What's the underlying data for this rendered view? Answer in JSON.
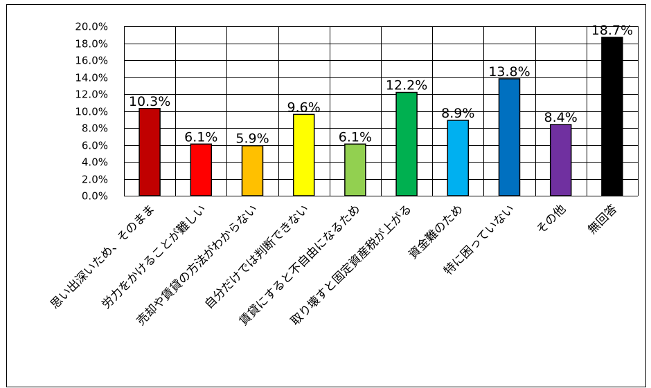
{
  "chart_data": {
    "type": "bar",
    "title": "",
    "xlabel": "",
    "ylabel": "",
    "ylim": [
      0,
      20
    ],
    "y_tick_step": 2,
    "y_tick_format": "percent_1dp",
    "grid": "horizontal and vertical",
    "legend": "none",
    "categories": [
      "思い出深いため、そのまま",
      "労力をかけることが難しい",
      "売却や賃貸の方法がわからない",
      "自分だけでは判断できない",
      "賃貸にすると不自由になるため",
      "取り壊すと固定資産税が上がる",
      "資金難のため",
      "特に困っていない",
      "その他",
      "無回答"
    ],
    "values": [
      10.3,
      6.1,
      5.9,
      9.6,
      6.1,
      12.2,
      8.9,
      13.8,
      8.4,
      18.7
    ],
    "data_labels": [
      "10.3%",
      "6.1%",
      "5.9%",
      "9.6%",
      "6.1%",
      "12.2%",
      "8.9%",
      "13.8%",
      "8.4%",
      "18.7%"
    ],
    "colors": [
      "#C00000",
      "#FF0000",
      "#FFC000",
      "#FFFF00",
      "#92D050",
      "#00B050",
      "#00B0F0",
      "#0070C0",
      "#7030A0",
      "#000000"
    ]
  }
}
